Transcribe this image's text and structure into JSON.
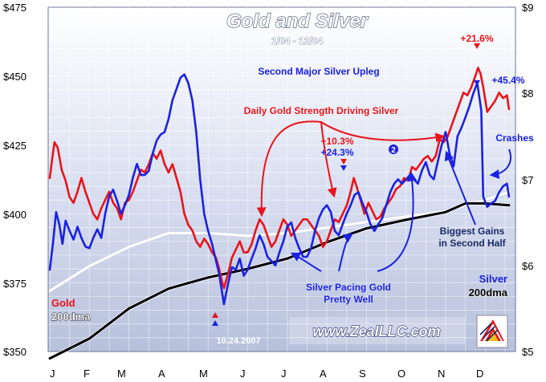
{
  "chart_data": {
    "type": "line",
    "title": "Gold and Silver",
    "subtitle": "1/04 - 12/04",
    "x": {
      "categories": [
        "J",
        "F",
        "M",
        "A",
        "M",
        "J",
        "J",
        "A",
        "S",
        "O",
        "N",
        "D"
      ]
    },
    "y_left": {
      "ticks": [
        "$475",
        "$450",
        "$425",
        "$400",
        "$375",
        "$350"
      ],
      "ylim": [
        350,
        475
      ]
    },
    "y_right": {
      "ticks": [
        "$9",
        "$8",
        "$7",
        "$6",
        "$5"
      ],
      "ylim": [
        5,
        9
      ]
    },
    "series": [
      {
        "name": "Gold",
        "color": "#e8141a",
        "axis": "left",
        "points": [
          [
            0.0,
            413
          ],
          [
            0.06,
            420
          ],
          [
            0.12,
            426
          ],
          [
            0.2,
            424
          ],
          [
            0.3,
            416
          ],
          [
            0.4,
            412
          ],
          [
            0.5,
            406
          ],
          [
            0.6,
            404
          ],
          [
            0.7,
            408
          ],
          [
            0.8,
            413
          ],
          [
            0.9,
            408
          ],
          [
            1.0,
            404
          ],
          [
            1.1,
            400
          ],
          [
            1.2,
            398
          ],
          [
            1.3,
            402
          ],
          [
            1.4,
            405
          ],
          [
            1.5,
            408
          ],
          [
            1.6,
            404
          ],
          [
            1.7,
            402
          ],
          [
            1.8,
            398
          ],
          [
            1.9,
            404
          ],
          [
            2.0,
            405
          ],
          [
            2.1,
            408
          ],
          [
            2.2,
            412
          ],
          [
            2.3,
            416
          ],
          [
            2.4,
            415
          ],
          [
            2.5,
            418
          ],
          [
            2.6,
            422
          ],
          [
            2.7,
            420
          ],
          [
            2.8,
            423
          ],
          [
            2.9,
            418
          ],
          [
            3.0,
            415
          ],
          [
            3.1,
            418
          ],
          [
            3.2,
            413
          ],
          [
            3.3,
            408
          ],
          [
            3.4,
            400
          ],
          [
            3.5,
            396
          ],
          [
            3.6,
            394
          ],
          [
            3.7,
            390
          ],
          [
            3.8,
            388
          ],
          [
            3.9,
            391
          ],
          [
            4.0,
            389
          ],
          [
            4.1,
            386
          ],
          [
            4.2,
            384
          ],
          [
            4.28,
            380
          ],
          [
            4.34,
            376
          ],
          [
            4.4,
            373
          ],
          [
            4.5,
            378
          ],
          [
            4.6,
            384
          ],
          [
            4.7,
            387
          ],
          [
            4.8,
            390
          ],
          [
            4.9,
            386
          ],
          [
            5.0,
            386
          ],
          [
            5.1,
            389
          ],
          [
            5.2,
            394
          ],
          [
            5.3,
            398
          ],
          [
            5.4,
            396
          ],
          [
            5.5,
            392
          ],
          [
            5.6,
            388
          ],
          [
            5.7,
            390
          ],
          [
            5.8,
            394
          ],
          [
            5.9,
            398
          ],
          [
            6.0,
            396
          ],
          [
            6.1,
            392
          ],
          [
            6.2,
            394
          ],
          [
            6.3,
            396
          ],
          [
            6.4,
            398
          ],
          [
            6.5,
            398
          ],
          [
            6.6,
            396
          ],
          [
            6.7,
            394
          ],
          [
            6.8,
            392
          ],
          [
            6.9,
            388
          ],
          [
            7.0,
            390
          ],
          [
            7.1,
            394
          ],
          [
            7.2,
            398
          ],
          [
            7.3,
            397
          ],
          [
            7.4,
            400
          ],
          [
            7.5,
            403
          ],
          [
            7.6,
            408
          ],
          [
            7.68,
            413
          ],
          [
            7.75,
            410
          ],
          [
            7.85,
            405
          ],
          [
            7.95,
            400
          ],
          [
            8.05,
            404
          ],
          [
            8.15,
            401
          ],
          [
            8.25,
            398
          ],
          [
            8.35,
            399
          ],
          [
            8.45,
            402
          ],
          [
            8.55,
            404
          ],
          [
            8.65,
            406
          ],
          [
            8.75,
            409
          ],
          [
            8.85,
            410
          ],
          [
            8.95,
            413
          ],
          [
            9.05,
            412
          ],
          [
            9.15,
            417
          ],
          [
            9.25,
            416
          ],
          [
            9.35,
            418
          ],
          [
            9.45,
            420
          ],
          [
            9.55,
            421
          ],
          [
            9.65,
            419
          ],
          [
            9.75,
            421
          ],
          [
            9.85,
            427
          ],
          [
            9.95,
            426
          ],
          [
            10.05,
            428
          ],
          [
            10.15,
            432
          ],
          [
            10.25,
            436
          ],
          [
            10.35,
            440
          ],
          [
            10.45,
            444
          ],
          [
            10.55,
            443
          ],
          [
            10.65,
            446
          ],
          [
            10.75,
            450
          ],
          [
            10.82,
            453
          ],
          [
            10.88,
            451
          ],
          [
            10.95,
            446
          ],
          [
            11.05,
            437
          ],
          [
            11.15,
            439
          ],
          [
            11.25,
            441
          ],
          [
            11.35,
            444
          ],
          [
            11.45,
            442
          ],
          [
            11.55,
            443
          ],
          [
            11.6,
            438
          ]
        ]
      },
      {
        "name": "Silver",
        "color": "#1a22e0",
        "axis": "right",
        "points": [
          [
            0.0,
            5.95
          ],
          [
            0.08,
            6.25
          ],
          [
            0.16,
            6.62
          ],
          [
            0.24,
            6.48
          ],
          [
            0.32,
            6.25
          ],
          [
            0.4,
            6.52
          ],
          [
            0.5,
            6.4
          ],
          [
            0.6,
            6.3
          ],
          [
            0.7,
            6.45
          ],
          [
            0.8,
            6.32
          ],
          [
            0.9,
            6.22
          ],
          [
            1.0,
            6.2
          ],
          [
            1.1,
            6.32
          ],
          [
            1.2,
            6.42
          ],
          [
            1.3,
            6.32
          ],
          [
            1.4,
            6.6
          ],
          [
            1.5,
            6.8
          ],
          [
            1.6,
            6.88
          ],
          [
            1.7,
            6.75
          ],
          [
            1.8,
            6.6
          ],
          [
            1.9,
            6.7
          ],
          [
            2.0,
            6.82
          ],
          [
            2.1,
            7.02
          ],
          [
            2.2,
            7.18
          ],
          [
            2.3,
            7.05
          ],
          [
            2.4,
            7.05
          ],
          [
            2.5,
            7.1
          ],
          [
            2.6,
            7.3
          ],
          [
            2.7,
            7.45
          ],
          [
            2.8,
            7.52
          ],
          [
            2.9,
            7.55
          ],
          [
            3.0,
            7.7
          ],
          [
            3.1,
            7.92
          ],
          [
            3.2,
            8.05
          ],
          [
            3.3,
            8.18
          ],
          [
            3.4,
            8.22
          ],
          [
            3.5,
            8.12
          ],
          [
            3.6,
            7.92
          ],
          [
            3.7,
            7.55
          ],
          [
            3.8,
            7.0
          ],
          [
            3.9,
            6.6
          ],
          [
            4.0,
            6.4
          ],
          [
            4.1,
            6.25
          ],
          [
            4.2,
            6.05
          ],
          [
            4.28,
            5.9
          ],
          [
            4.34,
            5.72
          ],
          [
            4.4,
            5.55
          ],
          [
            4.5,
            5.78
          ],
          [
            4.6,
            5.98
          ],
          [
            4.7,
            5.95
          ],
          [
            4.8,
            6.08
          ],
          [
            4.9,
            5.88
          ],
          [
            5.0,
            5.95
          ],
          [
            5.1,
            6.08
          ],
          [
            5.2,
            6.2
          ],
          [
            5.3,
            6.35
          ],
          [
            5.4,
            6.25
          ],
          [
            5.5,
            6.1
          ],
          [
            5.6,
            6.05
          ],
          [
            5.7,
            6.0
          ],
          [
            5.8,
            6.15
          ],
          [
            5.9,
            6.28
          ],
          [
            6.0,
            6.45
          ],
          [
            6.1,
            6.5
          ],
          [
            6.2,
            6.32
          ],
          [
            6.3,
            6.2
          ],
          [
            6.4,
            6.1
          ],
          [
            6.5,
            6.1
          ],
          [
            6.6,
            6.2
          ],
          [
            6.7,
            6.4
          ],
          [
            6.8,
            6.55
          ],
          [
            6.9,
            6.65
          ],
          [
            7.0,
            6.7
          ],
          [
            7.1,
            6.62
          ],
          [
            7.2,
            6.4
          ],
          [
            7.3,
            6.35
          ],
          [
            7.4,
            6.48
          ],
          [
            7.5,
            6.6
          ],
          [
            7.6,
            6.7
          ],
          [
            7.7,
            6.82
          ],
          [
            7.8,
            6.85
          ],
          [
            7.9,
            6.72
          ],
          [
            8.0,
            6.62
          ],
          [
            8.1,
            6.48
          ],
          [
            8.2,
            6.4
          ],
          [
            8.3,
            6.48
          ],
          [
            8.4,
            6.55
          ],
          [
            8.5,
            6.7
          ],
          [
            8.6,
            6.85
          ],
          [
            8.7,
            6.95
          ],
          [
            8.8,
            7.0
          ],
          [
            8.9,
            6.95
          ],
          [
            9.0,
            7.0
          ],
          [
            9.1,
            7.05
          ],
          [
            9.2,
            7.0
          ],
          [
            9.3,
            6.95
          ],
          [
            9.4,
            7.1
          ],
          [
            9.5,
            7.2
          ],
          [
            9.6,
            7.05
          ],
          [
            9.7,
            7.0
          ],
          [
            9.8,
            7.2
          ],
          [
            9.9,
            7.4
          ],
          [
            10.0,
            7.55
          ],
          [
            10.1,
            7.3
          ],
          [
            10.2,
            7.15
          ],
          [
            10.3,
            7.5
          ],
          [
            10.4,
            7.6
          ],
          [
            10.5,
            7.72
          ],
          [
            10.6,
            7.85
          ],
          [
            10.7,
            8.0
          ],
          [
            10.8,
            8.12
          ],
          [
            10.9,
            7.8
          ],
          [
            10.95,
            6.8
          ],
          [
            11.05,
            6.68
          ],
          [
            11.15,
            6.72
          ],
          [
            11.25,
            6.75
          ],
          [
            11.35,
            6.85
          ],
          [
            11.45,
            6.92
          ],
          [
            11.55,
            6.95
          ],
          [
            11.6,
            6.8
          ]
        ]
      },
      {
        "name": "200dma",
        "color": "#ffffff",
        "axis": "left",
        "points": [
          [
            0.0,
            372
          ],
          [
            1.0,
            381
          ],
          [
            2.0,
            388
          ],
          [
            3.0,
            393
          ],
          [
            4.0,
            393
          ],
          [
            5.0,
            392
          ],
          [
            6.0,
            393
          ],
          [
            7.0,
            395
          ],
          [
            8.0,
            397
          ],
          [
            9.0,
            399
          ],
          [
            10.0,
            401
          ],
          [
            11.0,
            405
          ],
          [
            11.6,
            408
          ]
        ]
      },
      {
        "name": "200dma",
        "color": "#000000",
        "axis": "right",
        "points": [
          [
            0.0,
            4.92
          ],
          [
            1.0,
            5.15
          ],
          [
            2.0,
            5.5
          ],
          [
            3.0,
            5.73
          ],
          [
            4.0,
            5.86
          ],
          [
            5.0,
            5.96
          ],
          [
            6.0,
            6.08
          ],
          [
            7.0,
            6.27
          ],
          [
            8.0,
            6.43
          ],
          [
            9.0,
            6.53
          ],
          [
            10.0,
            6.62
          ],
          [
            10.5,
            6.72
          ],
          [
            11.0,
            6.72
          ],
          [
            11.6,
            6.7
          ]
        ]
      }
    ],
    "legend": [
      {
        "label": "Gold",
        "color": "#e8141a"
      },
      {
        "label": "200dma",
        "color": "#ffffff"
      },
      {
        "label": "Silver",
        "color": "#1a22e0"
      },
      {
        "label": "200dma",
        "color": "#000000"
      }
    ],
    "annotations": {
      "second_upleg": "Second Major Silver Upleg",
      "daily_gold": "Daily Gold Strength Driving Silver",
      "gain_gold_mid": "+10.3%",
      "gain_silver_mid": "+24.3%",
      "gain_gold_top": "+21.6%",
      "gain_silver_top": "+45.4%",
      "crashes": "Crashes",
      "biggest_gains_1": "Biggest Gains",
      "biggest_gains_2": "in Second Half",
      "pacing_1": "Silver Pacing Gold",
      "pacing_2": "Pretty Well",
      "date_mark": "10.24.2007",
      "circled_two": "2"
    },
    "grid": true,
    "website": "www.ZealLLC.com"
  }
}
